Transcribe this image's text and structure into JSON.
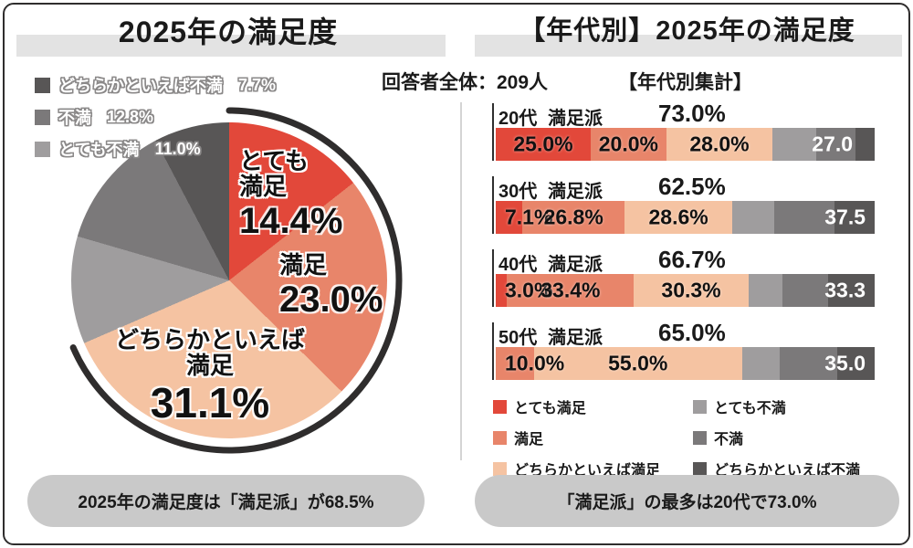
{
  "ui_colors": {
    "title_backdrop": "#e3e3e3",
    "pill_background": "#c9c9c9",
    "divider": "#d4d4d4",
    "frame": "#2f2d2d"
  },
  "left": {
    "title": "2025年の満足度",
    "legend": [
      {
        "label": "どちらかといえば不満",
        "value": "7.7%",
        "color": "#585656"
      },
      {
        "label": "不満",
        "value": "12.8%",
        "color": "#7b797a"
      },
      {
        "label": "とても不満",
        "value": "11.0%",
        "color": "#9f9d9e"
      }
    ],
    "pie_labels": [
      {
        "line1": "とても",
        "line2": "満足",
        "value": "14.4%"
      },
      {
        "line1": "満足",
        "line2": "",
        "value": "23.0%"
      },
      {
        "line1": "どちらかといえば",
        "line2": "満足",
        "value": "31.1%"
      }
    ],
    "summary": "2025年の満足度は「満足派」が68.5%"
  },
  "right": {
    "title": "【年代別】2025年の満足度",
    "respondents": "回答者全体：209人",
    "subheading": "【年代別集計】",
    "rows": [
      {
        "age": "20代",
        "tag": "満足派",
        "total": "73.0%",
        "labels": [
          "25.0%",
          "20.0%",
          "28.0%"
        ],
        "gray_label": "27.0"
      },
      {
        "age": "30代",
        "tag": "満足派",
        "total": "62.5%",
        "labels": [
          "7.1%",
          "26.8%",
          "28.6%"
        ],
        "gray_label": "37.5"
      },
      {
        "age": "40代",
        "tag": "満足派",
        "total": "66.7%",
        "labels": [
          "3.0%",
          "33.4%",
          "30.3%"
        ],
        "gray_label": "33.3"
      },
      {
        "age": "50代",
        "tag": "満足派",
        "total": "65.0%",
        "labels": [
          "10.0%",
          "55.0%"
        ],
        "gray_label": "35.0"
      }
    ],
    "legend_col1": [
      {
        "label": "とても満足",
        "color": "#e2483a"
      },
      {
        "label": "満足",
        "color": "#e8856a"
      },
      {
        "label": "どちらかといえば満足",
        "color": "#f5c3a2"
      }
    ],
    "legend_col2": [
      {
        "label": "とても不満",
        "color": "#9f9d9e"
      },
      {
        "label": "不満",
        "color": "#7b797a"
      },
      {
        "label": "どちらかといえば不満",
        "color": "#585656"
      }
    ],
    "summary": "「満足派」の最多は20代で73.0%"
  },
  "chart_data": [
    {
      "type": "pie",
      "title": "2025年の満足度",
      "categories": [
        "とても満足",
        "満足",
        "どちらかといえば満足",
        "とても不満",
        "不満",
        "どちらかといえば不満"
      ],
      "values": [
        14.4,
        23.0,
        31.1,
        11.0,
        12.8,
        7.7
      ],
      "colors": [
        "#e2483a",
        "#e8856a",
        "#f5c3a2",
        "#9f9d9e",
        "#7b797a",
        "#585656"
      ],
      "start_angle_deg": 0,
      "direction": "clockwise",
      "highlight_arc": {
        "label": "満足派",
        "percent": 68.5
      },
      "annotation": "2025年の満足度は「満足派」が68.5%"
    },
    {
      "type": "bar",
      "orientation": "horizontal-stacked",
      "title": "【年代別】2025年の満足度",
      "subtitle": "【年代別集計】",
      "respondents_total": "回答者全体：209人",
      "categories": [
        "20代",
        "30代",
        "40代",
        "50代"
      ],
      "series": [
        {
          "name": "とても満足",
          "color": "#e2483a",
          "values": [
            25.0,
            7.1,
            3.0,
            0.0
          ]
        },
        {
          "name": "満足",
          "color": "#e8856a",
          "values": [
            20.0,
            26.8,
            33.4,
            10.0
          ]
        },
        {
          "name": "どちらかといえば満足",
          "color": "#f5c3a2",
          "values": [
            28.0,
            28.6,
            30.3,
            55.0
          ]
        },
        {
          "name": "とても不満",
          "color": "#9f9d9e",
          "values": [
            11.5,
            11.0,
            9.0,
            10.0
          ],
          "estimated": true
        },
        {
          "name": "不満",
          "color": "#7b797a",
          "values": [
            10.5,
            16.0,
            12.0,
            15.0
          ],
          "estimated": true
        },
        {
          "name": "どちらかといえば不満",
          "color": "#585656",
          "values": [
            5.0,
            10.5,
            12.3,
            10.0
          ],
          "estimated": true
        }
      ],
      "satisfied_totals": [
        73.0,
        62.5,
        66.7,
        65.0
      ],
      "dissatisfied_totals": [
        27.0,
        37.5,
        33.3,
        35.0
      ],
      "xlim": [
        0,
        100
      ],
      "annotation": "「満足派」の最多は20代で73.0%"
    }
  ]
}
